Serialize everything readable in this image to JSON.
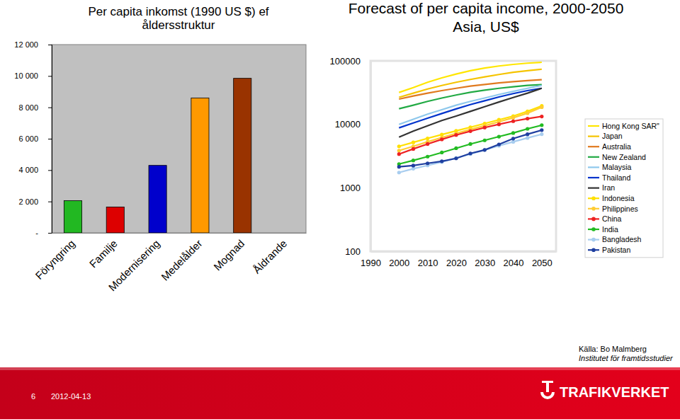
{
  "chart_data": [
    {
      "type": "bar",
      "title": "Per capita inkomst (1990 US $) ef åldersstruktur",
      "categories": [
        "Föryngring",
        "Familje",
        "Modernisering",
        "Medelålder",
        "Mognad",
        "Åldrande"
      ],
      "values": [
        2050,
        1650,
        4300,
        8600,
        9850,
        null
      ],
      "colors": [
        "#22b822",
        "#dd0000",
        "#0000cc",
        "#ff9900",
        "#993300",
        null
      ],
      "ylim": [
        0,
        12000
      ],
      "yticks": [
        {
          "value": 0,
          "label": "-"
        },
        {
          "value": 2000,
          "label": "2 000"
        },
        {
          "value": 4000,
          "label": "4 000"
        },
        {
          "value": 6000,
          "label": "6 000"
        },
        {
          "value": 8000,
          "label": "8 000"
        },
        {
          "value": 10000,
          "label": "10 000"
        },
        {
          "value": 12000,
          "label": "12 000"
        }
      ],
      "grid": false
    },
    {
      "type": "line",
      "title": "Forecast of per capita income, 2000-2050",
      "subtitle": "Asia, US$",
      "log": "y",
      "x": [
        2000,
        2005,
        2010,
        2015,
        2020,
        2025,
        2030,
        2035,
        2040,
        2045,
        2050
      ],
      "xlim": [
        1990,
        2055
      ],
      "xticks": [
        1990,
        2000,
        2010,
        2020,
        2030,
        2040,
        2050
      ],
      "ylim": [
        100,
        100000
      ],
      "yticks": [
        100,
        1000,
        10000,
        100000
      ],
      "grid": false,
      "legend": "right",
      "series": [
        {
          "name": "Hong Kong SAR\"",
          "color": "#ffe600",
          "values": [
            31800,
            38000,
            46000,
            54000,
            62000,
            70000,
            77000,
            83000,
            88000,
            92000,
            95000
          ]
        },
        {
          "name": "Japan",
          "color": "#f5c400",
          "values": [
            26600,
            31000,
            36000,
            41000,
            46000,
            51000,
            56000,
            61000,
            66000,
            70000,
            74000
          ]
        },
        {
          "name": "Australia",
          "color": "#e07a1f",
          "values": [
            25000,
            28000,
            31000,
            34000,
            37000,
            40000,
            42500,
            45000,
            47000,
            49000,
            50600
          ]
        },
        {
          "name": "New Zealand",
          "color": "#22aa44",
          "values": [
            17600,
            20000,
            23000,
            26000,
            29000,
            32000,
            34500,
            37000,
            39000,
            41000,
            42300
          ]
        },
        {
          "name": "Malaysia",
          "color": "#8ec8ec",
          "values": [
            10000,
            12000,
            14500,
            17000,
            20000,
            23000,
            26000,
            29500,
            33000,
            37000,
            41000
          ]
        },
        {
          "name": "Thailand",
          "color": "#0033cc",
          "values": [
            8800,
            10500,
            12500,
            14800,
            17500,
            20500,
            23500,
            27000,
            30500,
            34000,
            37000
          ]
        },
        {
          "name": "Iran",
          "color": "#333333",
          "values": [
            6300,
            7800,
            9500,
            11500,
            13500,
            16000,
            19000,
            22500,
            26500,
            31000,
            37000
          ]
        },
        {
          "name": "Indonesia",
          "color": "#ffe000",
          "marker": "circle",
          "values": [
            4500,
            5200,
            6000,
            6900,
            7900,
            9000,
            10300,
            11800,
            13500,
            16000,
            19500
          ]
        },
        {
          "name": "Philippines",
          "color": "#ffcc33",
          "marker": "circle",
          "values": [
            3860,
            4500,
            5300,
            6200,
            7200,
            8300,
            9500,
            11000,
            12700,
            15000,
            18600
          ]
        },
        {
          "name": "China",
          "color": "#ee2222",
          "marker": "circle",
          "values": [
            3400,
            4100,
            4900,
            5800,
            6800,
            7800,
            8900,
            10000,
            11200,
            12300,
            13300
          ]
        },
        {
          "name": "India",
          "color": "#22bb22",
          "marker": "circle",
          "values": [
            2370,
            2700,
            3100,
            3600,
            4200,
            4900,
            5600,
            6400,
            7300,
            8500,
            9700
          ]
        },
        {
          "name": "Bangladesh",
          "color": "#a8cdef",
          "marker": "circle",
          "values": [
            1740,
            2000,
            2250,
            2550,
            2950,
            3400,
            3950,
            4600,
            5300,
            6100,
            7000
          ]
        },
        {
          "name": "Pakistan",
          "color": "#1f3fa0",
          "marker": "circle",
          "values": [
            2140,
            2240,
            2430,
            2620,
            2910,
            3480,
            3950,
            4830,
            5960,
            6980,
            8100
          ]
        }
      ]
    }
  ],
  "slide": {
    "page_number": "6",
    "date": "2012-04-13",
    "source": "Källa: Bo Malmberg",
    "institute": "Institutet för framtidsstudier",
    "logo": "TRAFIKVERKET"
  }
}
